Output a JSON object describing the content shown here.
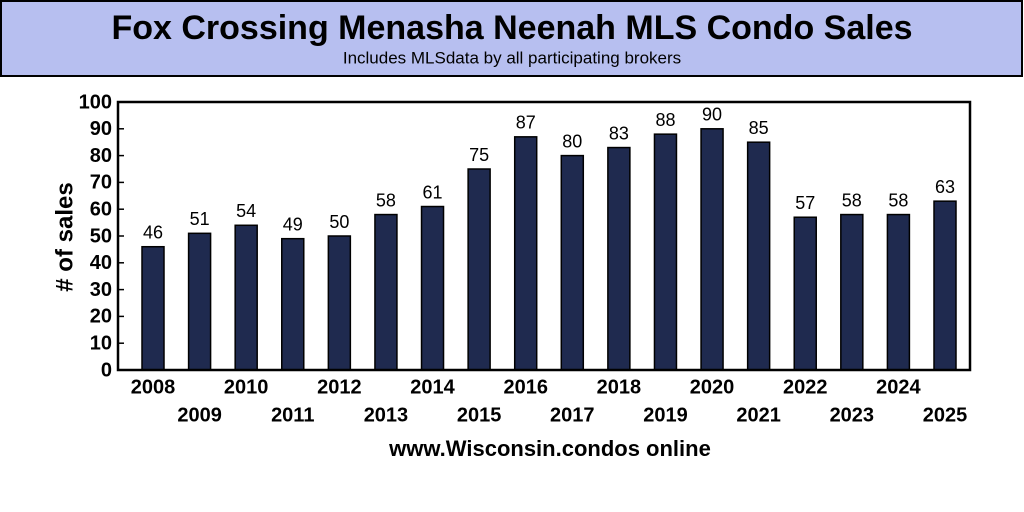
{
  "chart_data": {
    "type": "bar",
    "title": "Fox Crossing Menasha Neenah MLS Condo Sales",
    "subtitle": "Includes MLSdata  by all participating brokers",
    "y_label": "# of sales",
    "x_label": "www.Wisconsin.condos online",
    "categories": [
      "2008",
      "2009",
      "2010",
      "2011",
      "2012",
      "2013",
      "2014",
      "2015",
      "2016",
      "2017",
      "2018",
      "2019",
      "2020",
      "2021",
      "2022",
      "2023",
      "2024",
      "2025"
    ],
    "values": [
      46,
      51,
      54,
      49,
      50,
      58,
      61,
      75,
      87,
      80,
      83,
      88,
      90,
      85,
      57,
      58,
      58,
      63
    ],
    "color": "#1f2a4f",
    "ylim": [
      0,
      100
    ],
    "yticks": [
      0,
      10,
      20,
      30,
      40,
      50,
      60,
      70,
      80,
      90,
      100
    ],
    "grid": false
  }
}
